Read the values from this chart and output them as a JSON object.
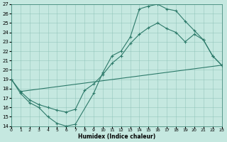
{
  "xlabel": "Humidex (Indice chaleur)",
  "bg_color": "#c5e8e0",
  "line_color": "#2d7a6a",
  "grid_color": "#8abfb5",
  "xlim": [
    0,
    23
  ],
  "ylim": [
    14,
    27
  ],
  "xticks": [
    0,
    1,
    2,
    3,
    4,
    5,
    6,
    7,
    8,
    9,
    10,
    11,
    12,
    13,
    14,
    15,
    16,
    17,
    18,
    19,
    20,
    21,
    22,
    23
  ],
  "yticks": [
    14,
    15,
    16,
    17,
    18,
    19,
    20,
    21,
    22,
    23,
    24,
    25,
    26,
    27
  ],
  "line1_x": [
    0,
    1,
    2,
    3,
    4,
    5,
    6,
    7,
    9,
    10,
    11,
    12,
    13,
    14,
    15,
    16,
    17,
    18,
    19,
    20,
    21,
    22,
    23
  ],
  "line1_y": [
    19.0,
    17.5,
    16.5,
    16.0,
    15.0,
    14.3,
    14.0,
    14.2,
    17.5,
    19.7,
    21.5,
    22.0,
    23.5,
    26.5,
    26.8,
    27.0,
    26.5,
    26.3,
    25.2,
    24.2,
    23.2,
    21.5,
    20.5
  ],
  "line2_x": [
    0,
    1,
    2,
    3,
    4,
    5,
    6,
    7,
    8,
    9,
    10,
    11,
    12,
    13,
    14,
    15,
    16,
    17,
    18,
    19,
    20,
    21,
    22,
    23
  ],
  "line2_y": [
    19.0,
    17.7,
    16.8,
    16.3,
    16.0,
    15.7,
    15.5,
    15.8,
    17.8,
    18.5,
    19.5,
    20.7,
    21.5,
    22.8,
    23.8,
    24.5,
    25.0,
    24.4,
    24.0,
    23.0,
    23.8,
    23.2,
    21.5,
    20.5
  ],
  "line3_x": [
    1,
    23
  ],
  "line3_y": [
    17.7,
    20.5
  ]
}
